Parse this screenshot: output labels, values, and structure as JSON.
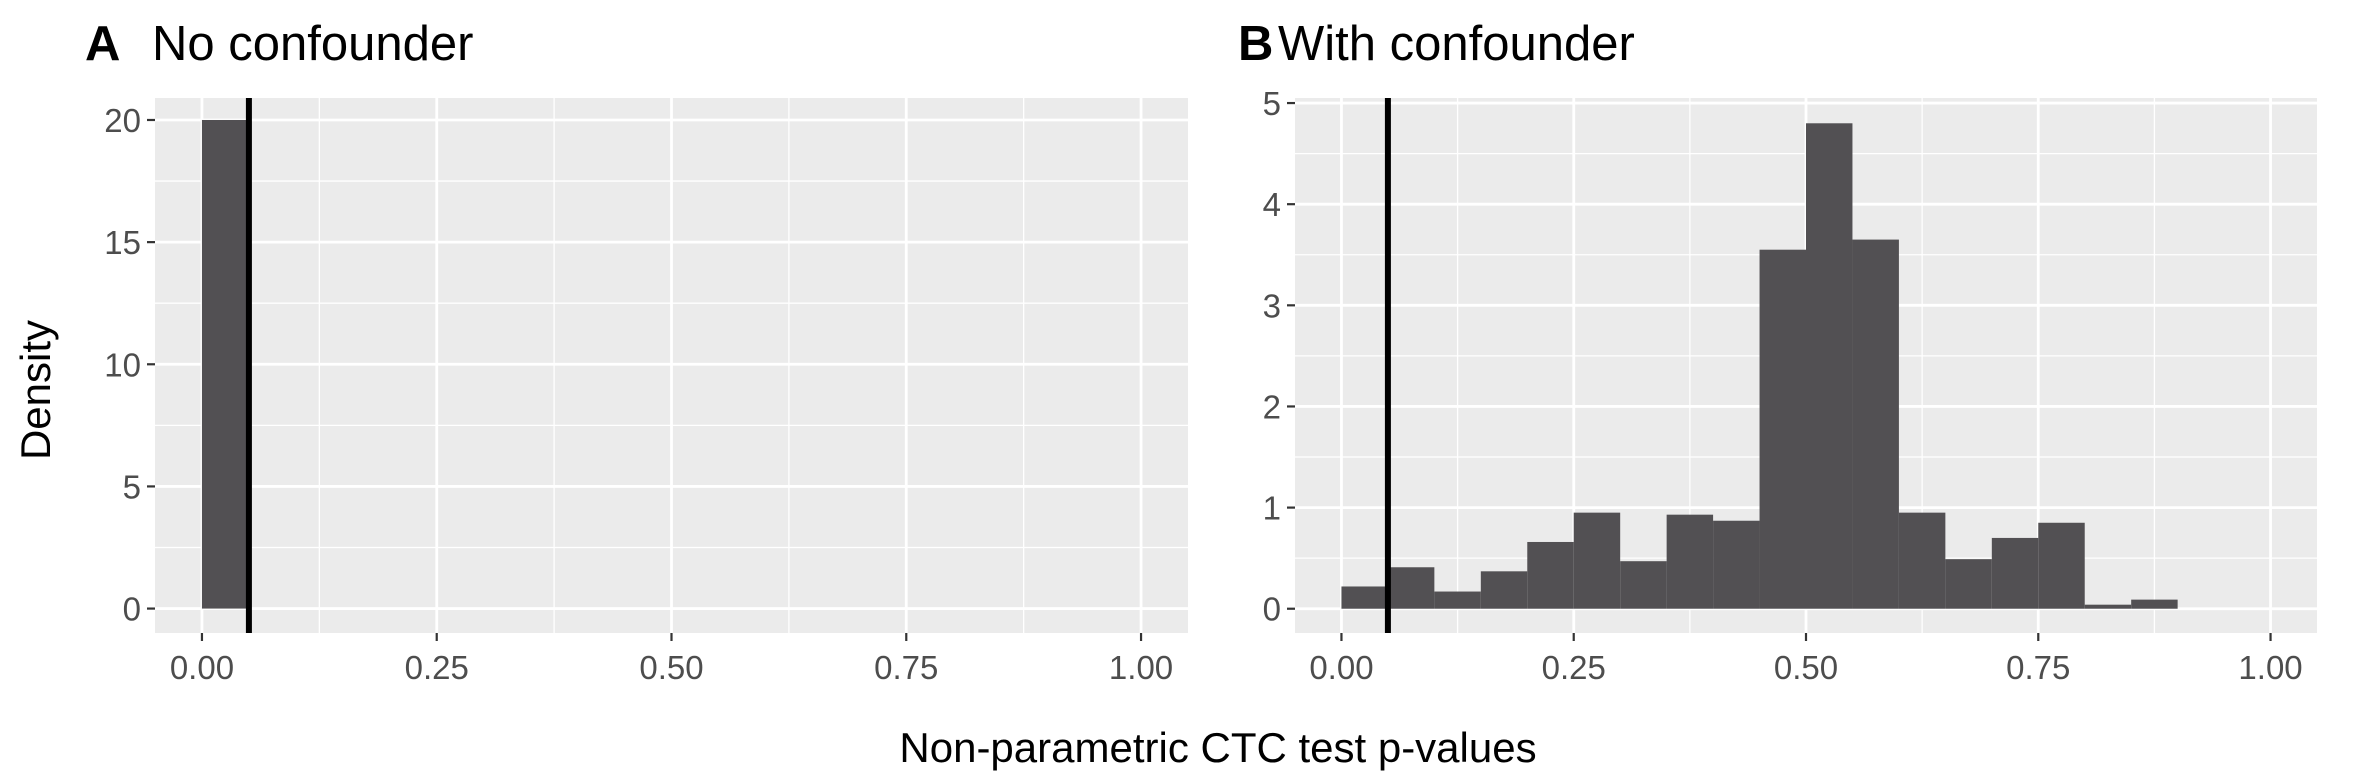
{
  "chart_data": [
    {
      "type": "histogram",
      "panel_tag": "A",
      "title": "No confounder",
      "ylabel": "Density",
      "xlim": [
        -0.05,
        1.05
      ],
      "ylim": [
        -1.0,
        20.9
      ],
      "x_ticks": [
        0,
        0.25,
        0.5,
        0.75,
        1
      ],
      "x_tick_labels": [
        "0.00",
        "0.25",
        "0.50",
        "0.75",
        "1.00"
      ],
      "y_ticks": [
        0,
        5,
        10,
        15,
        20
      ],
      "y_tick_labels": [
        "0",
        "5",
        "10",
        "15",
        "20"
      ],
      "bin_width": 0.05,
      "bins": [
        {
          "x0": 0.0,
          "x1": 0.05,
          "density": 20
        }
      ],
      "reference_line_x": 0.05,
      "grid": true,
      "bar_color": "#525053",
      "panel_background": "#ebebeb"
    },
    {
      "type": "histogram",
      "panel_tag": "B",
      "title": "With confounder",
      "ylabel": "",
      "xlim": [
        -0.05,
        1.05
      ],
      "ylim": [
        -0.24,
        5.05
      ],
      "x_ticks": [
        0,
        0.25,
        0.5,
        0.75,
        1
      ],
      "x_tick_labels": [
        "0.00",
        "0.25",
        "0.50",
        "0.75",
        "1.00"
      ],
      "y_ticks": [
        0,
        1,
        2,
        3,
        4,
        5
      ],
      "y_tick_labels": [
        "0",
        "1",
        "2",
        "3",
        "4",
        "5"
      ],
      "bin_width": 0.05,
      "bins": [
        {
          "x0": 0.0,
          "x1": 0.05,
          "density": 0.22
        },
        {
          "x0": 0.05,
          "x1": 0.1,
          "density": 0.41
        },
        {
          "x0": 0.1,
          "x1": 0.15,
          "density": 0.17
        },
        {
          "x0": 0.15,
          "x1": 0.2,
          "density": 0.37
        },
        {
          "x0": 0.2,
          "x1": 0.25,
          "density": 0.66
        },
        {
          "x0": 0.25,
          "x1": 0.3,
          "density": 0.95
        },
        {
          "x0": 0.3,
          "x1": 0.35,
          "density": 0.47
        },
        {
          "x0": 0.35,
          "x1": 0.4,
          "density": 0.93
        },
        {
          "x0": 0.4,
          "x1": 0.45,
          "density": 0.87
        },
        {
          "x0": 0.45,
          "x1": 0.5,
          "density": 3.55
        },
        {
          "x0": 0.5,
          "x1": 0.55,
          "density": 4.8
        },
        {
          "x0": 0.55,
          "x1": 0.6,
          "density": 3.65
        },
        {
          "x0": 0.6,
          "x1": 0.65,
          "density": 0.95
        },
        {
          "x0": 0.65,
          "x1": 0.7,
          "density": 0.49
        },
        {
          "x0": 0.7,
          "x1": 0.75,
          "density": 0.7
        },
        {
          "x0": 0.75,
          "x1": 0.8,
          "density": 0.85
        },
        {
          "x0": 0.8,
          "x1": 0.85,
          "density": 0.04
        },
        {
          "x0": 0.85,
          "x1": 0.9,
          "density": 0.09
        }
      ],
      "reference_line_x": 0.05,
      "grid": true,
      "bar_color": "#525053",
      "panel_background": "#ebebeb"
    }
  ],
  "shared_xlabel": "Non-parametric CTC test p-values"
}
